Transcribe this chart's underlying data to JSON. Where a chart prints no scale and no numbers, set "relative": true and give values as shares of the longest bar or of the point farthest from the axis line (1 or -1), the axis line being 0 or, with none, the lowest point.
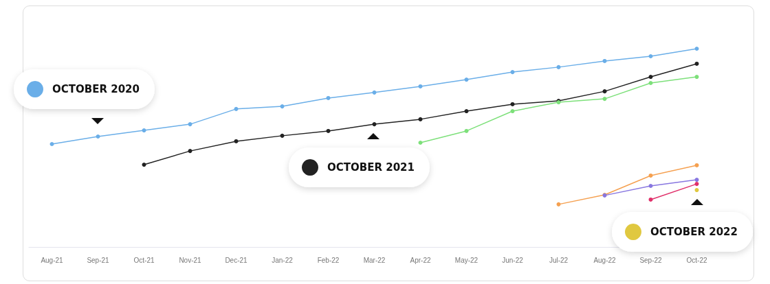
{
  "chart_data": {
    "type": "line",
    "relative": true,
    "marker": "circle",
    "line_style": "solid",
    "legend": "bottom right",
    "categories": [
      "Aug-21",
      "Sep-21",
      "Oct-21",
      "Nov-21",
      "Dec-21",
      "Jan-22",
      "Feb-22",
      "Mar-22",
      "Apr-22",
      "May-22",
      "Jun-22",
      "Jul-22",
      "Aug-22",
      "Sep-22",
      "Oct-22"
    ],
    "series": [
      {
        "name": "OCTOBER 2020",
        "color": "#6aaee8",
        "values": [
          0.519,
          0.557,
          0.588,
          0.619,
          0.696,
          0.709,
          0.751,
          0.779,
          0.81,
          0.844,
          0.882,
          0.907,
          0.938,
          0.962,
          1
        ]
      },
      {
        "name": "OCTOBER 2021",
        "color": "#222222",
        "values": [
          null,
          null,
          0.415,
          0.484,
          0.533,
          0.561,
          0.585,
          0.619,
          0.644,
          0.685,
          0.72,
          0.737,
          0.785,
          0.858,
          0.924
        ]
      },
      {
        "color": "#7de07a",
        "values": [
          null,
          null,
          null,
          null,
          null,
          null,
          null,
          null,
          0.526,
          0.585,
          0.685,
          0.73,
          0.747,
          0.827,
          0.858
        ]
      },
      {
        "color": "#f5a050",
        "values": [
          null,
          null,
          null,
          null,
          null,
          null,
          null,
          null,
          null,
          null,
          null,
          0.215,
          0.263,
          0.36,
          0.412
        ]
      },
      {
        "color": "#8877e0",
        "values": [
          null,
          null,
          null,
          null,
          null,
          null,
          null,
          null,
          null,
          null,
          null,
          null,
          0.26,
          0.308,
          0.339
        ]
      },
      {
        "color": "#e0306a",
        "values": [
          null,
          null,
          null,
          null,
          null,
          null,
          null,
          null,
          null,
          null,
          null,
          null,
          null,
          0.239,
          0.318
        ]
      },
      {
        "name": "OCTOBER 2022",
        "color": "#e0c840",
        "values": [
          null,
          null,
          null,
          null,
          null,
          null,
          null,
          null,
          null,
          null,
          null,
          null,
          null,
          null,
          0.287
        ]
      }
    ]
  }
}
